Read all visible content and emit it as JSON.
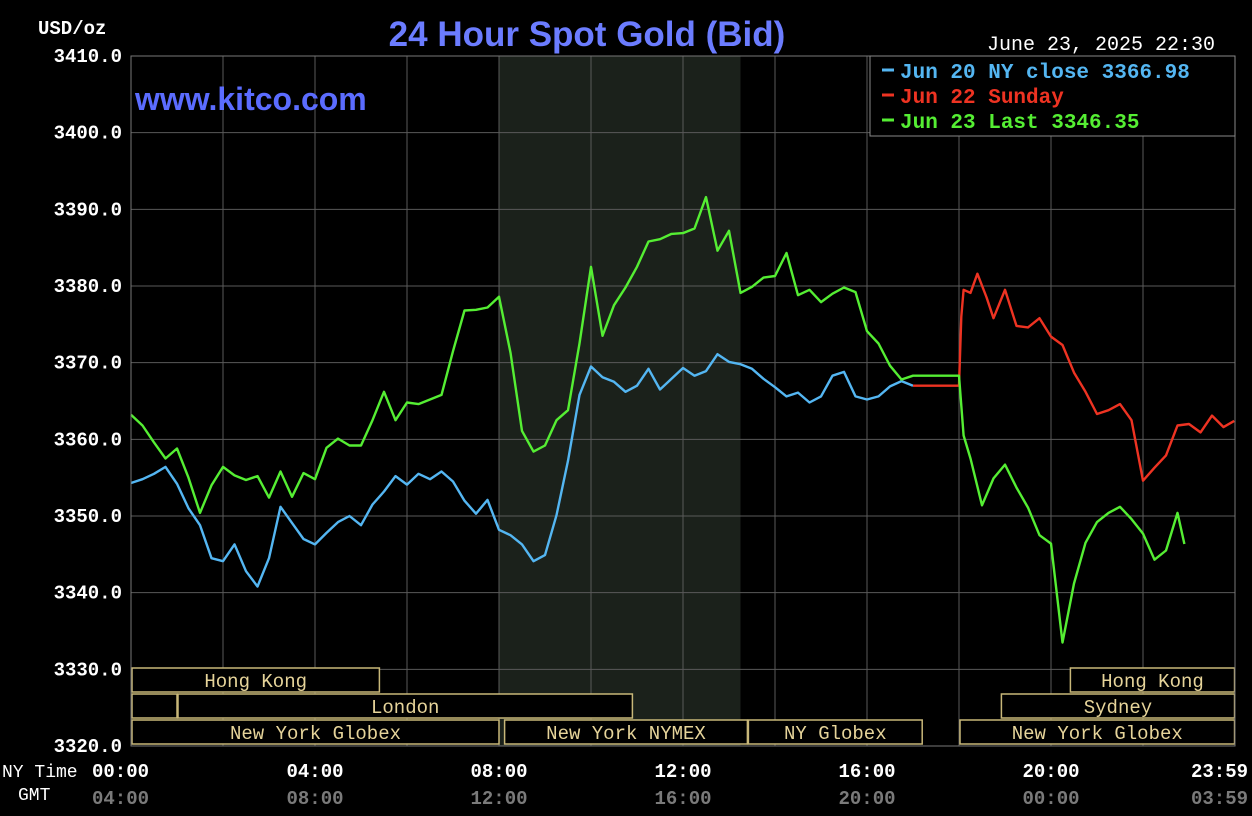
{
  "header": {
    "title": "24 Hour Spot Gold (Bid)",
    "unit_label": "USD/oz",
    "timestamp": "June 23, 2025 22:30",
    "watermark": "www.kitco.com"
  },
  "axis_row_labels": {
    "ny_time": "NY Time",
    "gmt": "GMT"
  },
  "colors": {
    "background": "#000000",
    "plot_background": "#000000",
    "shade": "#1b211b",
    "grid": "#5a5a5a",
    "axis_text": "#ffffff",
    "gmt_text": "#7a7a7a",
    "title": "#6b7cff",
    "session_text": "#e6d49a",
    "session_border": "#c8b779",
    "blue": "#54b6f2",
    "red": "#ee3322",
    "green": "#55ee33"
  },
  "sessions": [
    {
      "label": "Hong Kong",
      "start": 0,
      "end": 5.4
    },
    {
      "label": "",
      "start": 0,
      "end": 1
    },
    {
      "label": "London",
      "start": 1,
      "end": 10.9
    },
    {
      "label": "New York Globex",
      "start": 0,
      "end": 8
    },
    {
      "label": "New York NYMEX",
      "start": 8.1,
      "end": 13.4
    },
    {
      "label": "NY Globex",
      "start": 13.4,
      "end": 17.2
    },
    {
      "label": "Hong Kong",
      "start": 20.4,
      "end": 23.99
    },
    {
      "label": "Sydney",
      "start": 18.9,
      "end": 23.99
    },
    {
      "label": "New York Globex",
      "start": 18,
      "end": 23.99
    }
  ],
  "chart_data": {
    "type": "line",
    "title": "24 Hour Spot Gold (Bid)",
    "ylabel": "USD/oz",
    "ylim": [
      3320,
      3410
    ],
    "yticks": [
      "3410.0",
      "3400.0",
      "3390.0",
      "3380.0",
      "3370.0",
      "3360.0",
      "3350.0",
      "3340.0",
      "3330.0",
      "3320.0"
    ],
    "xlim": [
      0,
      24
    ],
    "xticks_ny": [
      {
        "t": 0,
        "label": "00:00"
      },
      {
        "t": 4,
        "label": "04:00"
      },
      {
        "t": 8,
        "label": "08:00"
      },
      {
        "t": 12,
        "label": "12:00"
      },
      {
        "t": 16,
        "label": "16:00"
      },
      {
        "t": 20,
        "label": "20:00"
      },
      {
        "t": 23.983,
        "label": "23:59"
      }
    ],
    "xticks_gmt": [
      "04:00",
      "08:00",
      "12:00",
      "16:00",
      "20:00",
      "00:00",
      "03:59"
    ],
    "shaded_range": [
      8,
      13.25
    ],
    "grid": true,
    "legend_position": "top-right",
    "series": [
      {
        "name": "Jun 20 NY close 3366.98",
        "color_key": "blue",
        "points": [
          [
            0,
            3354.3
          ],
          [
            0.25,
            3354.8
          ],
          [
            0.5,
            3355.5
          ],
          [
            0.75,
            3356.4
          ],
          [
            1,
            3354.2
          ],
          [
            1.25,
            3351
          ],
          [
            1.5,
            3348.8
          ],
          [
            1.75,
            3344.5
          ],
          [
            2,
            3344.1
          ],
          [
            2.25,
            3346.3
          ],
          [
            2.5,
            3342.8
          ],
          [
            2.75,
            3340.8
          ],
          [
            3,
            3344.5
          ],
          [
            3.25,
            3351.2
          ],
          [
            3.5,
            3349.1
          ],
          [
            3.75,
            3347
          ],
          [
            4,
            3346.3
          ],
          [
            4.25,
            3347.8
          ],
          [
            4.5,
            3349.2
          ],
          [
            4.75,
            3350
          ],
          [
            5,
            3348.8
          ],
          [
            5.25,
            3351.5
          ],
          [
            5.5,
            3353.2
          ],
          [
            5.75,
            3355.2
          ],
          [
            6,
            3354.1
          ],
          [
            6.25,
            3355.5
          ],
          [
            6.5,
            3354.8
          ],
          [
            6.75,
            3355.8
          ],
          [
            7,
            3354.5
          ],
          [
            7.25,
            3352
          ],
          [
            7.5,
            3350.3
          ],
          [
            7.75,
            3352.1
          ],
          [
            8,
            3348.2
          ],
          [
            8.25,
            3347.5
          ],
          [
            8.5,
            3346.3
          ],
          [
            8.75,
            3344.1
          ],
          [
            9,
            3344.9
          ],
          [
            9.25,
            3350.1
          ],
          [
            9.5,
            3357.2
          ],
          [
            9.75,
            3365.8
          ],
          [
            10,
            3369.5
          ],
          [
            10.25,
            3368.1
          ],
          [
            10.5,
            3367.5
          ],
          [
            10.75,
            3366.2
          ],
          [
            11,
            3367
          ],
          [
            11.25,
            3369.2
          ],
          [
            11.5,
            3366.5
          ],
          [
            11.75,
            3367.9
          ],
          [
            12,
            3369.3
          ],
          [
            12.25,
            3368.3
          ],
          [
            12.5,
            3368.9
          ],
          [
            12.75,
            3371.1
          ],
          [
            13,
            3370.1
          ],
          [
            13.25,
            3369.8
          ],
          [
            13.5,
            3369.2
          ],
          [
            13.75,
            3367.9
          ],
          [
            14,
            3366.8
          ],
          [
            14.25,
            3365.6
          ],
          [
            14.5,
            3366.1
          ],
          [
            14.75,
            3364.8
          ],
          [
            15,
            3365.6
          ],
          [
            15.25,
            3368.3
          ],
          [
            15.5,
            3368.8
          ],
          [
            15.75,
            3365.6
          ],
          [
            16,
            3365.2
          ],
          [
            16.25,
            3365.6
          ],
          [
            16.5,
            3366.9
          ],
          [
            16.75,
            3367.6
          ],
          [
            17,
            3367
          ]
        ]
      },
      {
        "name": "Jun 22 Sunday",
        "color_key": "red",
        "points": [
          [
            17,
            3367
          ],
          [
            17.25,
            3367
          ],
          [
            17.5,
            3367
          ],
          [
            17.75,
            3367
          ],
          [
            18,
            3367
          ],
          [
            18.05,
            3376
          ],
          [
            18.1,
            3379.5
          ],
          [
            18.25,
            3379.1
          ],
          [
            18.4,
            3381.6
          ],
          [
            18.6,
            3378.5
          ],
          [
            18.75,
            3375.8
          ],
          [
            19,
            3379.5
          ],
          [
            19.25,
            3374.8
          ],
          [
            19.5,
            3374.6
          ],
          [
            19.75,
            3375.8
          ],
          [
            20,
            3373.4
          ],
          [
            20.25,
            3372.3
          ],
          [
            20.5,
            3368.7
          ],
          [
            20.75,
            3366.2
          ],
          [
            21,
            3363.3
          ],
          [
            21.25,
            3363.8
          ],
          [
            21.5,
            3364.6
          ],
          [
            21.75,
            3362.5
          ],
          [
            22,
            3354.6
          ],
          [
            22.25,
            3356.3
          ],
          [
            22.5,
            3357.9
          ],
          [
            22.75,
            3361.8
          ],
          [
            23,
            3362
          ],
          [
            23.25,
            3360.9
          ],
          [
            23.5,
            3363.1
          ],
          [
            23.75,
            3361.6
          ],
          [
            23.983,
            3362.4
          ]
        ]
      },
      {
        "name": "Jun 23 Last 3346.35",
        "color_key": "green",
        "points": [
          [
            0,
            3363.2
          ],
          [
            0.25,
            3361.8
          ],
          [
            0.5,
            3359.6
          ],
          [
            0.75,
            3357.5
          ],
          [
            1,
            3358.8
          ],
          [
            1.25,
            3355
          ],
          [
            1.5,
            3350.4
          ],
          [
            1.75,
            3354
          ],
          [
            2,
            3356.4
          ],
          [
            2.25,
            3355.3
          ],
          [
            2.5,
            3354.7
          ],
          [
            2.75,
            3355.2
          ],
          [
            3,
            3352.4
          ],
          [
            3.25,
            3355.8
          ],
          [
            3.5,
            3352.5
          ],
          [
            3.75,
            3355.6
          ],
          [
            4,
            3354.8
          ],
          [
            4.25,
            3358.9
          ],
          [
            4.5,
            3360.1
          ],
          [
            4.75,
            3359.2
          ],
          [
            5,
            3359.2
          ],
          [
            5.25,
            3362.5
          ],
          [
            5.5,
            3366.2
          ],
          [
            5.75,
            3362.5
          ],
          [
            6,
            3364.8
          ],
          [
            6.25,
            3364.6
          ],
          [
            6.5,
            3365.2
          ],
          [
            6.75,
            3365.8
          ],
          [
            7,
            3371.5
          ],
          [
            7.25,
            3376.8
          ],
          [
            7.5,
            3376.9
          ],
          [
            7.75,
            3377.2
          ],
          [
            8,
            3378.6
          ],
          [
            8.25,
            3371.3
          ],
          [
            8.5,
            3361.1
          ],
          [
            8.75,
            3358.4
          ],
          [
            9,
            3359.2
          ],
          [
            9.25,
            3362.5
          ],
          [
            9.5,
            3363.8
          ],
          [
            9.75,
            3372.5
          ],
          [
            10,
            3382.5
          ],
          [
            10.25,
            3373.5
          ],
          [
            10.5,
            3377.5
          ],
          [
            10.75,
            3379.8
          ],
          [
            11,
            3382.5
          ],
          [
            11.25,
            3385.8
          ],
          [
            11.5,
            3386.1
          ],
          [
            11.75,
            3386.8
          ],
          [
            12,
            3386.9
          ],
          [
            12.25,
            3387.5
          ],
          [
            12.5,
            3391.6
          ],
          [
            12.75,
            3384.6
          ],
          [
            13,
            3387.2
          ],
          [
            13.25,
            3379.1
          ],
          [
            13.5,
            3379.9
          ],
          [
            13.75,
            3381.1
          ],
          [
            14,
            3381.3
          ],
          [
            14.25,
            3384.3
          ],
          [
            14.5,
            3378.8
          ],
          [
            14.75,
            3379.5
          ],
          [
            15,
            3377.9
          ],
          [
            15.25,
            3379
          ],
          [
            15.5,
            3379.8
          ],
          [
            15.75,
            3379.2
          ],
          [
            16,
            3374.1
          ],
          [
            16.25,
            3372.5
          ],
          [
            16.5,
            3369.6
          ],
          [
            16.75,
            3367.8
          ],
          [
            17,
            3368.3
          ],
          [
            17.25,
            3368.3
          ],
          [
            17.5,
            3368.3
          ],
          [
            17.75,
            3368.3
          ],
          [
            18,
            3368.3
          ],
          [
            18.1,
            3360.5
          ],
          [
            18.25,
            3357.5
          ],
          [
            18.5,
            3351.4
          ],
          [
            18.75,
            3354.9
          ],
          [
            19,
            3356.7
          ],
          [
            19.25,
            3353.7
          ],
          [
            19.5,
            3351.1
          ],
          [
            19.75,
            3347.5
          ],
          [
            20,
            3346.4
          ],
          [
            20.25,
            3333.5
          ],
          [
            20.5,
            3341.2
          ],
          [
            20.75,
            3346.5
          ],
          [
            21,
            3349.2
          ],
          [
            21.25,
            3350.4
          ],
          [
            21.5,
            3351.2
          ],
          [
            21.75,
            3349.6
          ],
          [
            22,
            3347.7
          ],
          [
            22.25,
            3344.3
          ],
          [
            22.5,
            3345.5
          ],
          [
            22.75,
            3350.4
          ],
          [
            22.9,
            3346.35
          ]
        ]
      }
    ]
  }
}
